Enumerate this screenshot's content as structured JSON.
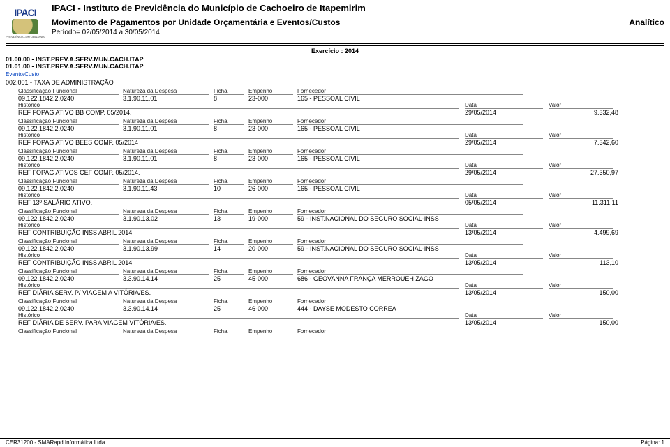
{
  "org": "IPACI - Instituto de Previdência do Município de Cachoeiro de Itapemirim",
  "reportTitle": "Movimento de Pagamentos por Unidade Orçamentária e Eventos/Custos",
  "analitico": "Analítico",
  "periodo": "Período= 02/05/2014 a 30/05/2014",
  "exercicio": "Exercício :  2014",
  "unit1": "01.00.00 - INST.PREV.A.SERV.MUN.CACH.ITAP",
  "unit2": "01.01.00 - INST.PREV.A.SERV.MUN.CACH.ITAP",
  "eventoLabel": "Evento/Custo",
  "eventoVal": "002.001 - TAXA DE ADMINISTRAÇÃO",
  "labels": {
    "c1": "Classificação Funcional",
    "c2": "Natureza da Despesa",
    "c3": "Ficha",
    "c4": "Empenho",
    "c5": "Fornecedor",
    "h1": "Histórico",
    "h2": "Data",
    "h3": "Valor"
  },
  "entries": [
    {
      "cf": "09.122.1842.2.0240",
      "nd": "3.1.90.11.01",
      "fi": "8",
      "em": "23-000",
      "fo": "165 - PESSOAL CIVIL",
      "hi": "REF FOPAG ATIVO BB COMP. 05/2014.",
      "dt": "29/05/2014",
      "vl": "9.332,48"
    },
    {
      "cf": "09.122.1842.2.0240",
      "nd": "3.1.90.11.01",
      "fi": "8",
      "em": "23-000",
      "fo": "165 - PESSOAL CIVIL",
      "hi": "REF FOPAG ATIVO BEES COMP. 05/2014",
      "dt": "29/05/2014",
      "vl": "7.342,60"
    },
    {
      "cf": "09.122.1842.2.0240",
      "nd": "3.1.90.11.01",
      "fi": "8",
      "em": "23-000",
      "fo": "165 - PESSOAL CIVIL",
      "hi": "REF FOPAG ATIVOS CEF COMP. 05/2014.",
      "dt": "29/05/2014",
      "vl": "27.350,97"
    },
    {
      "cf": "09.122.1842.2.0240",
      "nd": "3.1.90.11.43",
      "fi": "10",
      "em": "26-000",
      "fo": "165 - PESSOAL CIVIL",
      "hi": "REF 13º SALÁRIO ATIVO.",
      "dt": "05/05/2014",
      "vl": "11.311,11"
    },
    {
      "cf": "09.122.1842.2.0240",
      "nd": "3.1.90.13.02",
      "fi": "13",
      "em": "19-000",
      "fo": "59 - INST.NACIONAL DO SEGURO SOCIAL-INSS",
      "hi": "REF CONTRIBUIÇÃO INSS ABRIL 2014.",
      "dt": "13/05/2014",
      "vl": "4.499,69"
    },
    {
      "cf": "09.122.1842.2.0240",
      "nd": "3.1.90.13.99",
      "fi": "14",
      "em": "20-000",
      "fo": "59 - INST.NACIONAL DO SEGURO SOCIAL-INSS",
      "hi": "REF CONTRIBUIÇÃO INSS ABRIL 2014.",
      "dt": "13/05/2014",
      "vl": "113,10"
    },
    {
      "cf": "09.122.1842.2.0240",
      "nd": "3.3.90.14.14",
      "fi": "25",
      "em": "45-000",
      "fo": "686 - GEOVANNA FRANÇA MERROUEH ZAGO",
      "hi": "REF DIÁRIA SERV. P/ VIAGEM A VITÓRIA/ES.",
      "dt": "13/05/2014",
      "vl": "150,00"
    },
    {
      "cf": "09.122.1842.2.0240",
      "nd": "3.3.90.14.14",
      "fi": "25",
      "em": "46-000",
      "fo": "444 - DAYSE MODESTO CORREA",
      "hi": "REF DIÁRIA DE SERV. PARA VIAGEM VITÓRIA/ES.",
      "dt": "13/05/2014",
      "vl": "150,00"
    }
  ],
  "footerLeft": "CER31200 - SMARapd Informática Ltda",
  "footerRight": "Página:      1",
  "logoTop": "IPACI",
  "logoBot": "PREVIDÊNCIA COM CIDADANIA"
}
